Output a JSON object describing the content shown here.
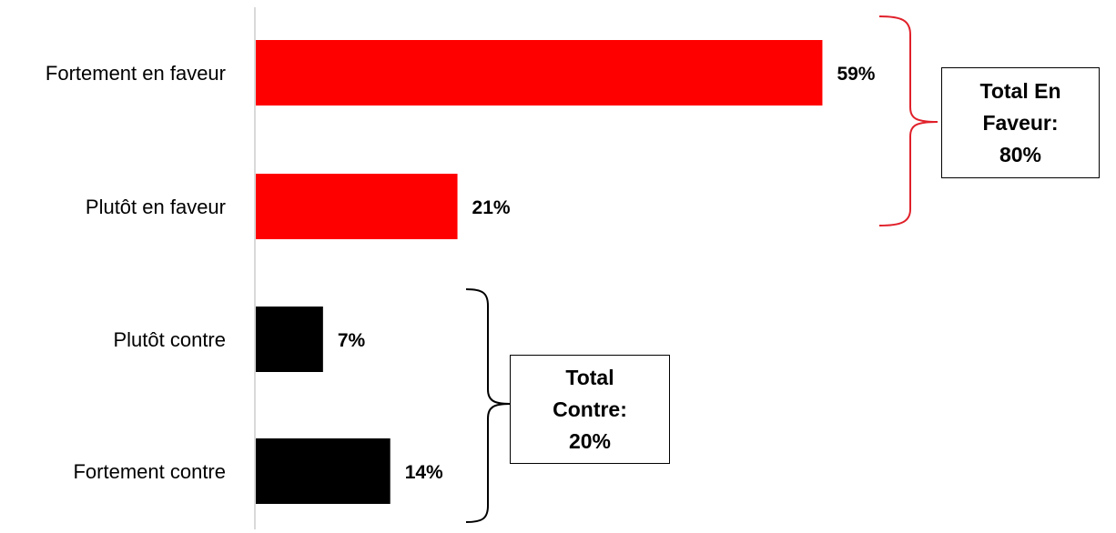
{
  "chart_data": {
    "type": "bar",
    "orientation": "horizontal",
    "categories": [
      "Fortement en faveur",
      "Plutôt en faveur",
      "Plutôt contre",
      "Fortement contre"
    ],
    "values": [
      59,
      21,
      7,
      14
    ],
    "value_labels": [
      "59%",
      "21%",
      "7%",
      "14%"
    ],
    "bar_colors": [
      "#ff0000",
      "#ff0000",
      "#000000",
      "#000000"
    ],
    "xlim": [
      0,
      60
    ],
    "grid": false,
    "groups": [
      {
        "bracket_color": "#e0202a",
        "text_lines": [
          "Total En",
          "Faveur:",
          "80%"
        ]
      },
      {
        "bracket_color": "#000000",
        "text_lines": [
          "Total",
          "Contre:",
          "20%"
        ]
      }
    ]
  }
}
